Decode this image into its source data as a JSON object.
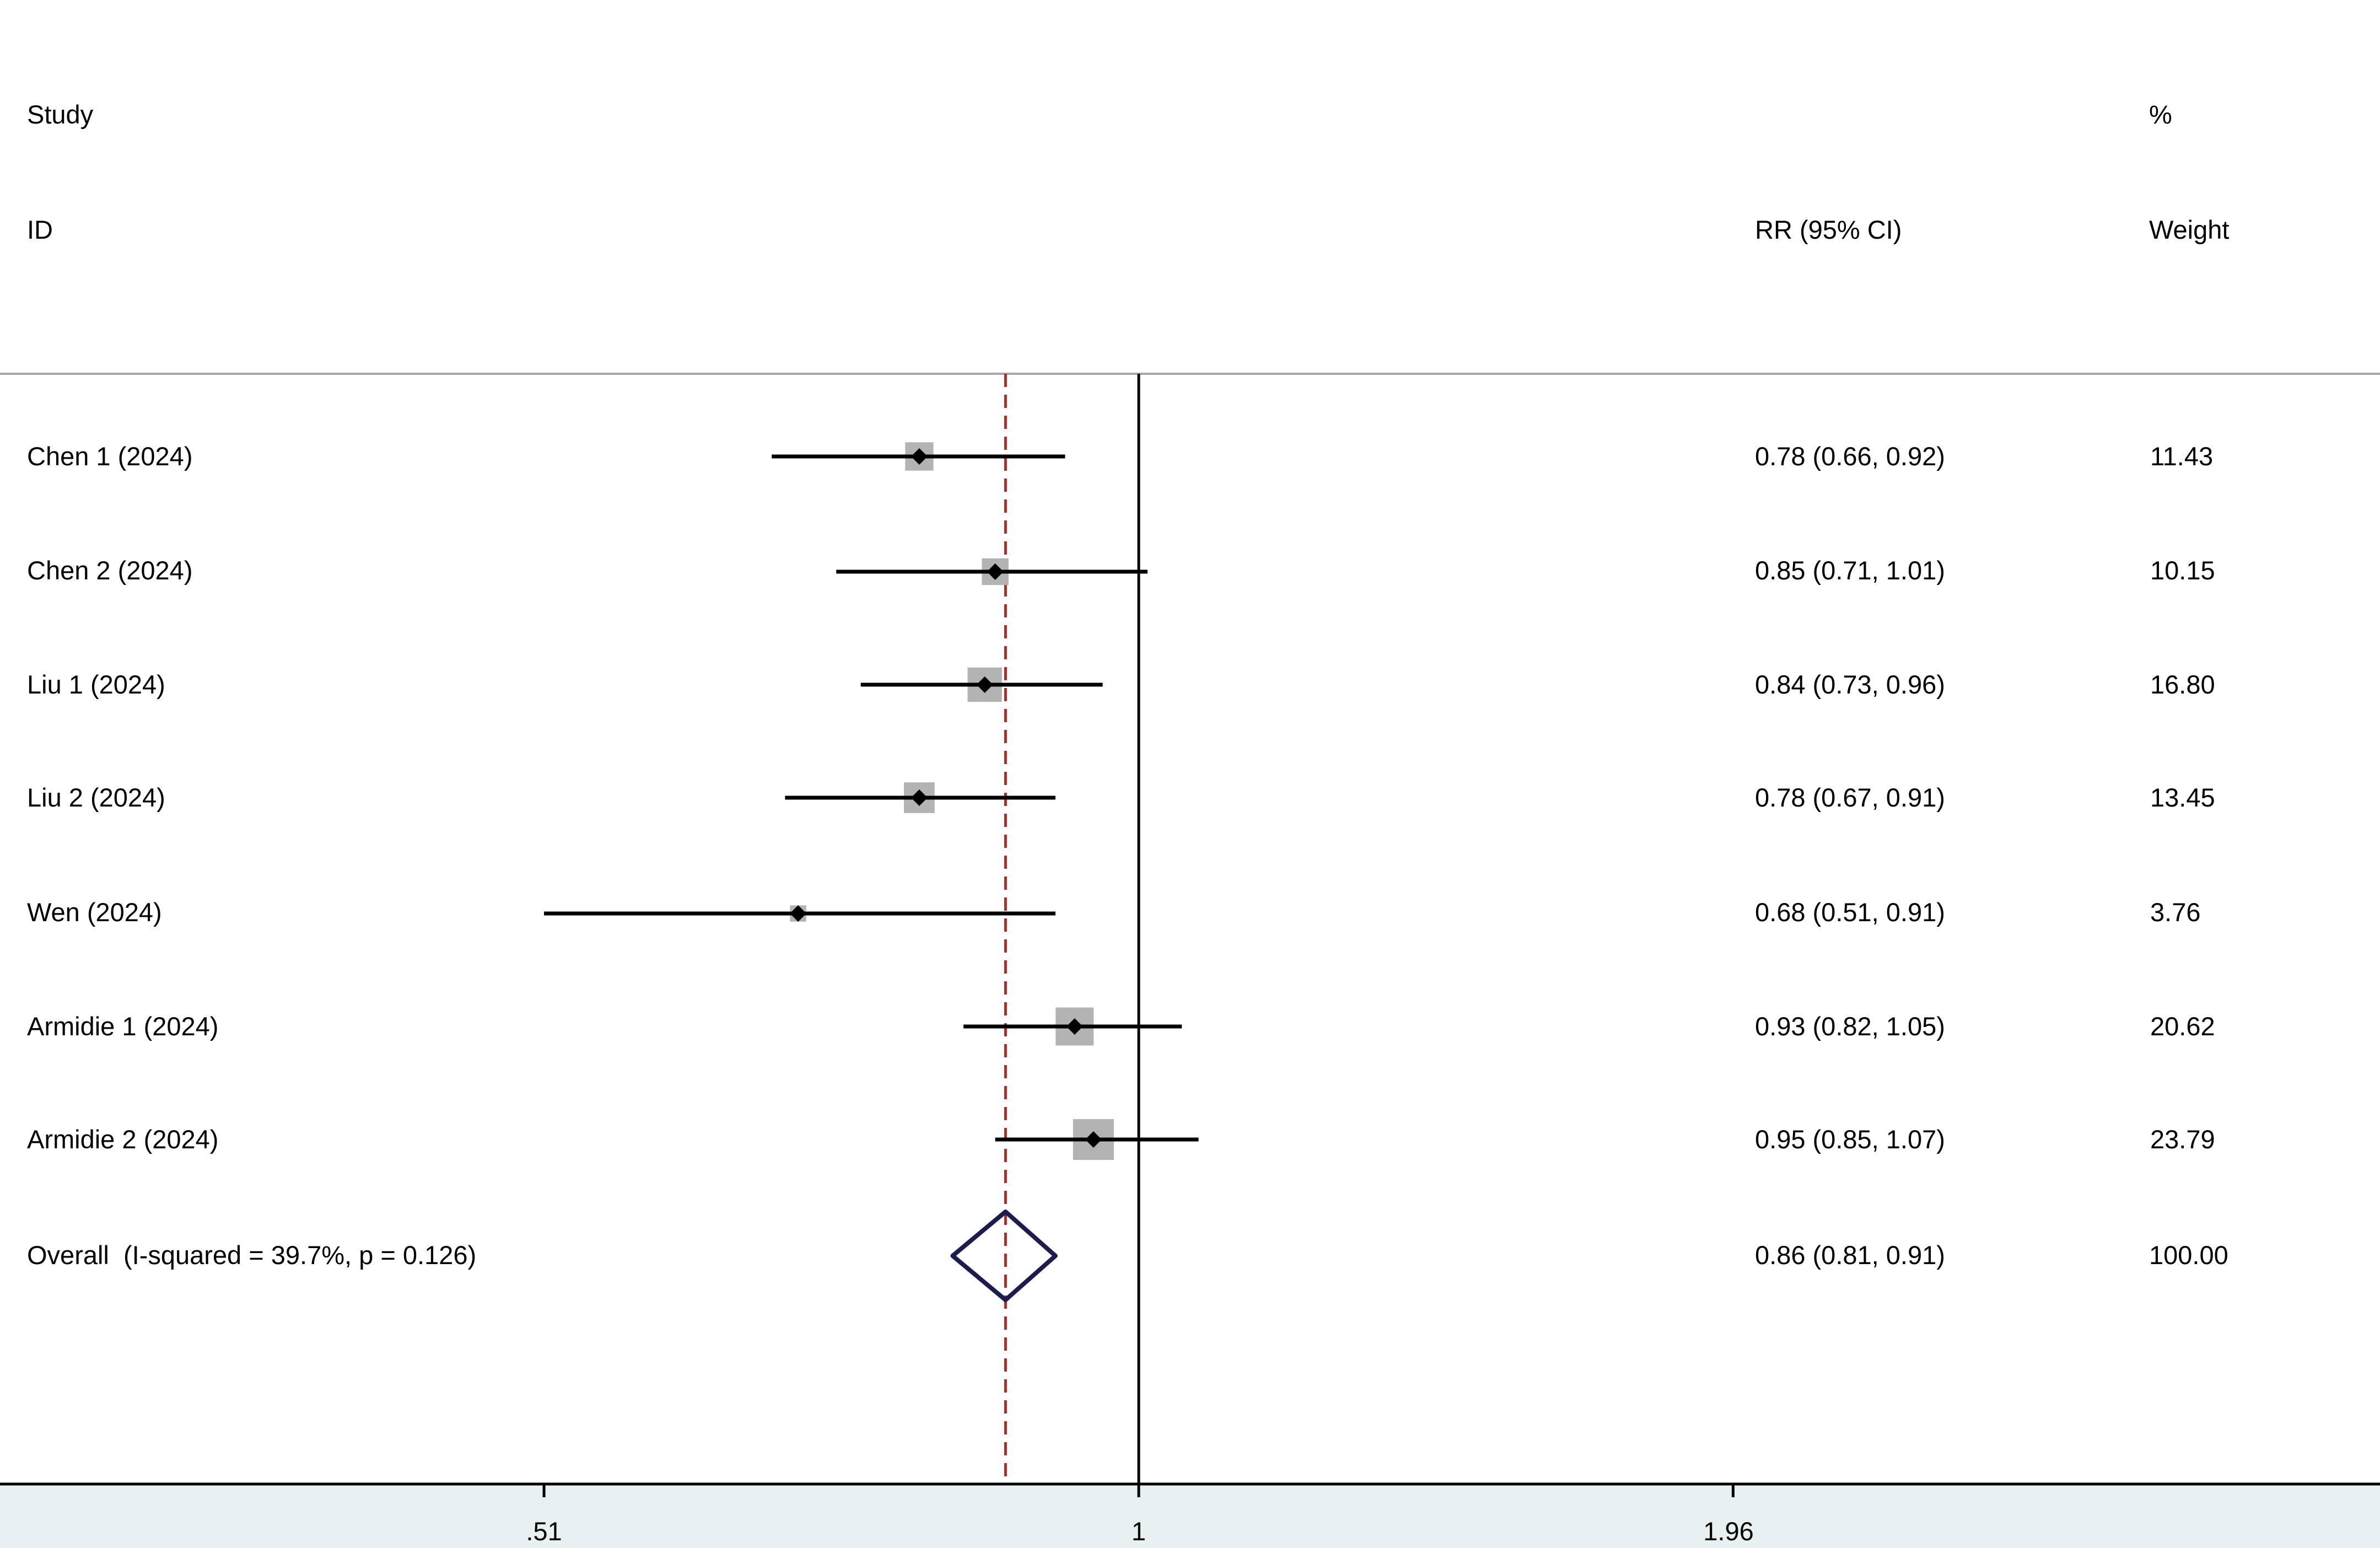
{
  "headers": {
    "study_line1": "Study",
    "study_line2": "ID",
    "rr": "RR (95% CI)",
    "weight_line1": "%",
    "weight_line2": "Weight"
  },
  "chart_data": {
    "type": "forest",
    "scale": "log",
    "null_line": 1,
    "overall_line": 0.86,
    "x_ticks": [
      ".51",
      "1",
      "1.96"
    ],
    "x_tick_values": [
      0.51,
      1,
      1.96
    ],
    "studies": [
      {
        "label": "Chen 1 (2024)",
        "rr": 0.78,
        "lo": 0.66,
        "hi": 0.92,
        "ci_text": "0.78 (0.66, 0.92)",
        "weight": 11.43,
        "weight_text": "11.43"
      },
      {
        "label": "Chen 2 (2024)",
        "rr": 0.85,
        "lo": 0.71,
        "hi": 1.01,
        "ci_text": "0.85 (0.71, 1.01)",
        "weight": 10.15,
        "weight_text": "10.15"
      },
      {
        "label": "Liu 1 (2024)",
        "rr": 0.84,
        "lo": 0.73,
        "hi": 0.96,
        "ci_text": "0.84 (0.73, 0.96)",
        "weight": 16.8,
        "weight_text": "16.80"
      },
      {
        "label": "Liu 2 (2024)",
        "rr": 0.78,
        "lo": 0.67,
        "hi": 0.91,
        "ci_text": "0.78 (0.67, 0.91)",
        "weight": 13.45,
        "weight_text": "13.45"
      },
      {
        "label": "Wen (2024)",
        "rr": 0.68,
        "lo": 0.51,
        "hi": 0.91,
        "ci_text": "0.68 (0.51, 0.91)",
        "weight": 3.76,
        "weight_text": "3.76"
      },
      {
        "label": "Armidie 1 (2024)",
        "rr": 0.93,
        "lo": 0.82,
        "hi": 1.05,
        "ci_text": "0.93 (0.82, 1.05)",
        "weight": 20.62,
        "weight_text": "20.62"
      },
      {
        "label": "Armidie 2 (2024)",
        "rr": 0.95,
        "lo": 0.85,
        "hi": 1.07,
        "ci_text": "0.95 (0.85, 1.07)",
        "weight": 23.79,
        "weight_text": "23.79"
      }
    ],
    "overall": {
      "label": "Overall  (I-squared = 39.7%, p = 0.126)",
      "rr": 0.86,
      "lo": 0.81,
      "hi": 0.91,
      "ci_text": "0.86 (0.81, 0.91)",
      "weight_text": "100.00"
    },
    "colors": {
      "ci_line": "#000000",
      "box": "#b3b3b3",
      "diamond": "#1c1c4e",
      "overall_line": "#a03030",
      "axis_band": "#e8f0f2",
      "divider": "#a8a8a8"
    }
  }
}
